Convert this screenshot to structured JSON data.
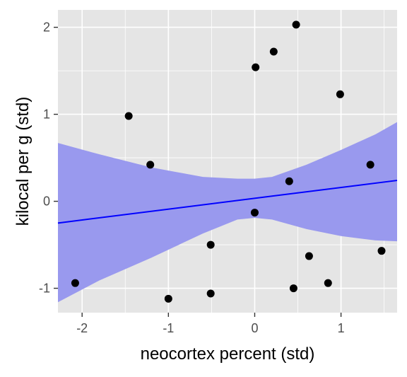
{
  "chart_data": {
    "type": "scatter",
    "title": "",
    "xlabel": "neocortex percent (std)",
    "ylabel": "kilocal per g (std)",
    "xlim": [
      -2.28,
      1.65
    ],
    "ylim": [
      -1.28,
      2.2
    ],
    "xticks": [
      -2,
      -1,
      0,
      1
    ],
    "xtick_labels": [
      "-2",
      "-1",
      "0",
      "1"
    ],
    "yticks": [
      -1,
      0,
      1,
      2
    ],
    "ytick_labels": [
      "-1",
      "0",
      "1",
      "2"
    ],
    "grid": true,
    "background_color": "#e5e5e5",
    "grid_color": "#ffffff",
    "point_color": "#000000",
    "line_color": "#0000ff",
    "band_color": "#9999ee",
    "points": [
      {
        "x": -2.08,
        "y": -0.94
      },
      {
        "x": -1.46,
        "y": 0.98
      },
      {
        "x": -1.21,
        "y": 0.42
      },
      {
        "x": -1.0,
        "y": -1.12
      },
      {
        "x": -0.51,
        "y": -0.5
      },
      {
        "x": -0.51,
        "y": -1.06
      },
      {
        "x": 0.0,
        "y": -0.13
      },
      {
        "x": 0.01,
        "y": 1.54
      },
      {
        "x": 0.22,
        "y": 1.72
      },
      {
        "x": 0.4,
        "y": 0.23
      },
      {
        "x": 0.45,
        "y": -1.0
      },
      {
        "x": 0.48,
        "y": 2.03
      },
      {
        "x": 0.63,
        "y": -0.63
      },
      {
        "x": 0.85,
        "y": -0.94
      },
      {
        "x": 0.99,
        "y": 1.23
      },
      {
        "x": 1.34,
        "y": 0.42
      },
      {
        "x": 1.47,
        "y": -0.57
      }
    ],
    "fit_line": {
      "x": [
        -2.28,
        1.65
      ],
      "y": [
        -0.25,
        0.24
      ]
    },
    "interval_band": {
      "x": [
        -2.28,
        -1.8,
        -1.2,
        -0.6,
        -0.2,
        0.0,
        0.2,
        0.6,
        1.0,
        1.4,
        1.65
      ],
      "lower": [
        -1.16,
        -0.91,
        -0.65,
        -0.37,
        -0.21,
        -0.19,
        -0.21,
        -0.32,
        -0.4,
        -0.45,
        -0.46
      ],
      "upper": [
        0.67,
        0.54,
        0.39,
        0.28,
        0.26,
        0.26,
        0.28,
        0.42,
        0.59,
        0.77,
        0.91
      ]
    }
  }
}
